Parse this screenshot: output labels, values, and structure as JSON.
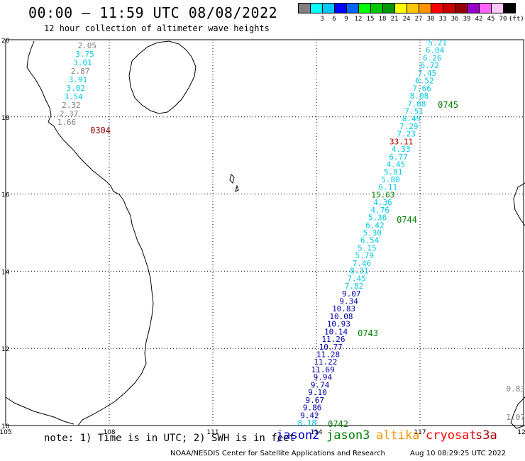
{
  "title": "00:00 – 11:59 UTC 08/08/2022",
  "subtitle": "12 hour collection of altimeter wave heights",
  "legend": {
    "swatches": [
      {
        "color": "#808080",
        "label": ""
      },
      {
        "color": "#00ffff",
        "label": "3"
      },
      {
        "color": "#00c8ff",
        "label": "6"
      },
      {
        "color": "#0000ff",
        "label": "9"
      },
      {
        "color": "#0064ff",
        "label": "12"
      },
      {
        "color": "#00ff00",
        "label": "15"
      },
      {
        "color": "#00c800",
        "label": "18"
      },
      {
        "color": "#009600",
        "label": "21"
      },
      {
        "color": "#ffff00",
        "label": "24"
      },
      {
        "color": "#ffc800",
        "label": "27"
      },
      {
        "color": "#ff9600",
        "label": "30"
      },
      {
        "color": "#ff0000",
        "label": "33"
      },
      {
        "color": "#c80000",
        "label": "36"
      },
      {
        "color": "#960000",
        "label": "39"
      },
      {
        "color": "#9600c8",
        "label": "42"
      },
      {
        "color": "#ff64ff",
        "label": "45"
      },
      {
        "color": "#ffc8ff",
        "label": "70"
      },
      {
        "color": "#000000",
        "label": "(ft)"
      }
    ]
  },
  "axes": {
    "lon_ticks": [
      "105",
      "108",
      "111",
      "114",
      "117",
      "120"
    ],
    "lat_ticks": [
      "20",
      "18",
      "16",
      "14",
      "12",
      "10"
    ]
  },
  "colors": {
    "cyan": "#00c8e6",
    "gray": "#808080",
    "navy": "#0000aa",
    "green": "#008000",
    "red": "#aa0000",
    "darkred": "#8b0000"
  },
  "west_track": [
    {
      "v": "2.05",
      "c": "gray"
    },
    {
      "v": "3.75",
      "c": "cyan"
    },
    {
      "v": "3.01",
      "c": "cyan"
    },
    {
      "v": "2.87",
      "c": "gray"
    },
    {
      "v": "3.91",
      "c": "cyan"
    },
    {
      "v": "3.02",
      "c": "cyan"
    },
    {
      "v": "3.54",
      "c": "cyan"
    },
    {
      "v": "2.32",
      "c": "gray"
    },
    {
      "v": "2.37",
      "c": "gray"
    },
    {
      "v": "1.66",
      "c": "gray"
    }
  ],
  "west_pass_time": "0304",
  "main_track": [
    {
      "v": "5.21",
      "c": "cyan"
    },
    {
      "v": "6.04",
      "c": "cyan"
    },
    {
      "v": "6.26",
      "c": "cyan"
    },
    {
      "v": "6.72",
      "c": "cyan"
    },
    {
      "v": "7.45",
      "c": "cyan"
    },
    {
      "v": "6.52",
      "c": "cyan"
    },
    {
      "v": "7.66",
      "c": "cyan"
    },
    {
      "v": "8.08",
      "c": "cyan"
    },
    {
      "v": "7.68",
      "c": "cyan"
    },
    {
      "v": "7.51",
      "c": "cyan"
    },
    {
      "v": "8.49",
      "c": "cyan"
    },
    {
      "v": "7.29",
      "c": "cyan"
    },
    {
      "v": "7.23",
      "c": "cyan"
    },
    {
      "v": "33.11",
      "c": "red"
    },
    {
      "v": "4.33",
      "c": "cyan"
    },
    {
      "v": "6.77",
      "c": "cyan"
    },
    {
      "v": "4.45",
      "c": "cyan"
    },
    {
      "v": "5.81",
      "c": "cyan"
    },
    {
      "v": "5.80",
      "c": "cyan"
    },
    {
      "v": "6.11",
      "c": "cyan"
    },
    {
      "v": "15.63",
      "c": "green"
    },
    {
      "v": "4.36",
      "c": "cyan"
    },
    {
      "v": "4.76",
      "c": "cyan"
    },
    {
      "v": "5.36",
      "c": "cyan"
    },
    {
      "v": "6.42",
      "c": "cyan"
    },
    {
      "v": "5.30",
      "c": "cyan"
    },
    {
      "v": "6.54",
      "c": "cyan"
    },
    {
      "v": "5.15",
      "c": "cyan"
    },
    {
      "v": "5.79",
      "c": "cyan"
    },
    {
      "v": "7.46",
      "c": "cyan"
    },
    {
      "v": "8.31",
      "c": "cyan"
    },
    {
      "v": "7.45",
      "c": "cyan"
    },
    {
      "v": "7.82",
      "c": "cyan"
    },
    {
      "v": "9.07",
      "c": "navy"
    },
    {
      "v": "9.34",
      "c": "navy"
    },
    {
      "v": "10.83",
      "c": "navy"
    },
    {
      "v": "10.08",
      "c": "navy"
    },
    {
      "v": "10.93",
      "c": "navy"
    },
    {
      "v": "10.14",
      "c": "navy"
    },
    {
      "v": "11.26",
      "c": "navy"
    },
    {
      "v": "10.77",
      "c": "navy"
    },
    {
      "v": "11.28",
      "c": "navy"
    },
    {
      "v": "11.22",
      "c": "navy"
    },
    {
      "v": "11.69",
      "c": "navy"
    },
    {
      "v": "9.94",
      "c": "navy"
    },
    {
      "v": "9.74",
      "c": "navy"
    },
    {
      "v": "9.10",
      "c": "navy"
    },
    {
      "v": "9.67",
      "c": "navy"
    },
    {
      "v": "9.86",
      "c": "navy"
    },
    {
      "v": "9.42",
      "c": "navy"
    },
    {
      "v": "8.18",
      "c": "cyan"
    }
  ],
  "pass_times": [
    "0745",
    "0744",
    "0743",
    "0742"
  ],
  "east_values": [
    {
      "v": "0.83",
      "c": "gray"
    },
    {
      "v": "1.07",
      "c": "gray"
    }
  ],
  "note": "note: 1) Time is in UTC; 2) SWH is in feet",
  "satellites": [
    {
      "name": "jason2",
      "color": "#0000cc"
    },
    {
      "name": "jason3",
      "color": "#008000"
    },
    {
      "name": "altika",
      "color": "#ff9600"
    },
    {
      "name": "cryosat",
      "color": "#ff0000"
    },
    {
      "name": "s3a",
      "color": "#aa0000"
    }
  ],
  "credit": "NOAA/NESDIS Center for Satellite Applications and Research",
  "timestamp": "Aug 10 08:29:25 UTC 2022"
}
